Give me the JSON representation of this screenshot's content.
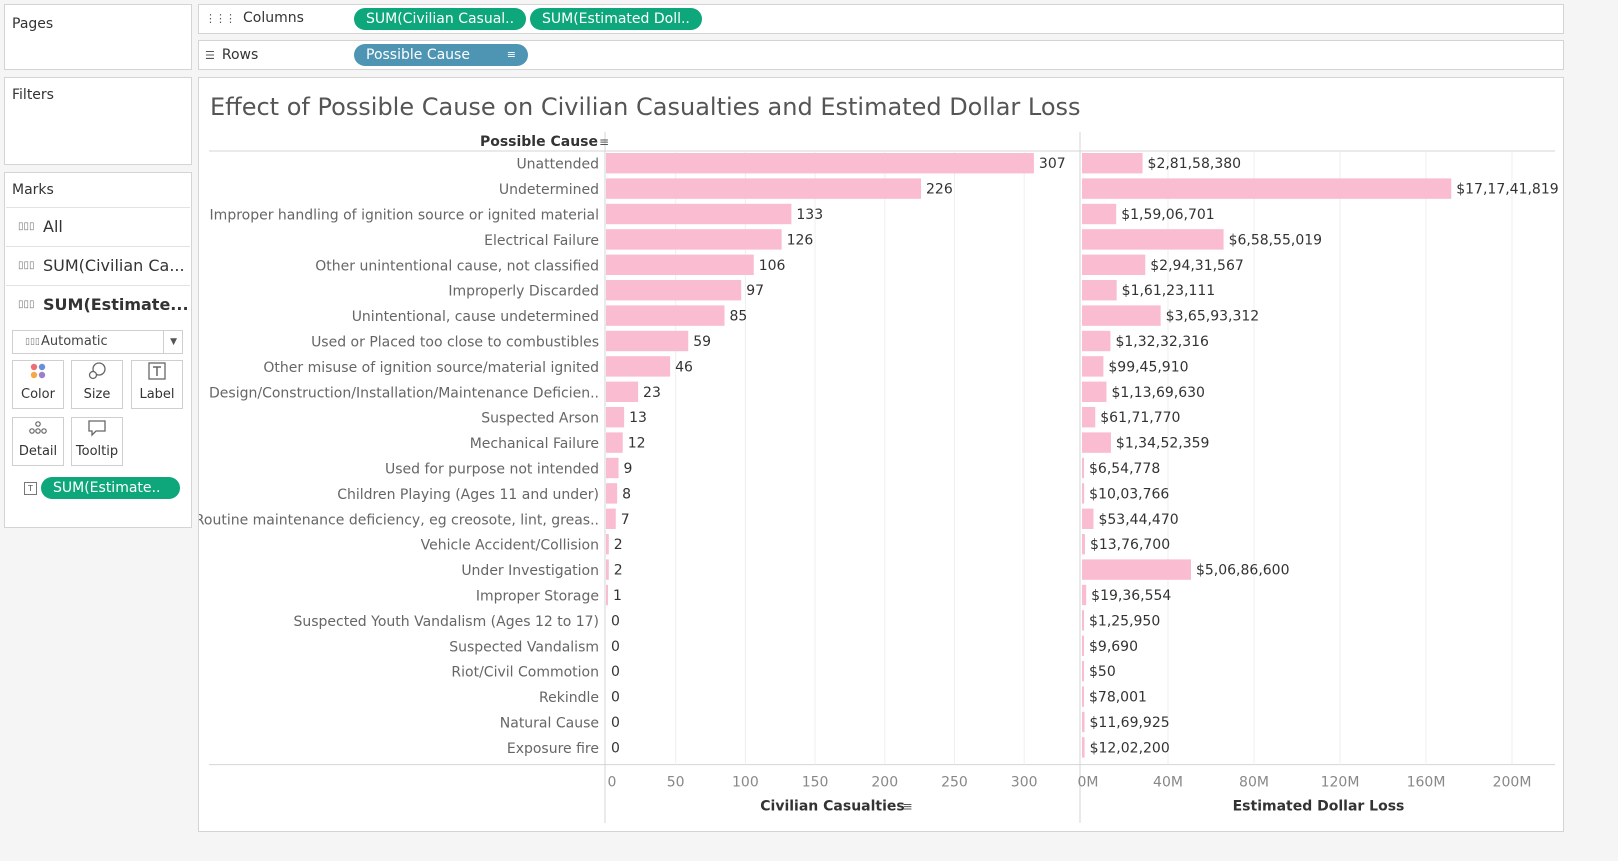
{
  "pages_card": {
    "title": "Pages"
  },
  "filters_card": {
    "title": "Filters"
  },
  "shelves": {
    "columns": {
      "label": "Columns",
      "icon": "columns-icon",
      "pills": [
        "SUM(Civilian Casual..",
        "SUM(Estimated Doll.."
      ]
    },
    "rows": {
      "label": "Rows",
      "icon": "rows-icon",
      "pills": [
        "Possible Cause"
      ]
    }
  },
  "marks": {
    "title": "Marks",
    "cards": [
      {
        "label": "All",
        "bold": false
      },
      {
        "label": "SUM(Civilian Ca...",
        "bold": false
      },
      {
        "label": "SUM(Estimate...",
        "bold": true
      }
    ],
    "mark_type": "Automatic",
    "buttons": [
      {
        "label": "Color",
        "icon": "color-icon"
      },
      {
        "label": "Size",
        "icon": "size-icon"
      },
      {
        "label": "Label",
        "icon": "label-icon"
      },
      {
        "label": "Detail",
        "icon": "detail-icon"
      },
      {
        "label": "Tooltip",
        "icon": "tooltip-icon"
      }
    ],
    "field_pill": "SUM(Estimate.."
  },
  "colors": {
    "bar": "#f9bcd0",
    "pill_green": "#0ea77b",
    "pill_blue": "#4e95b4"
  },
  "chart_data": {
    "type": "bar",
    "title": "Effect of Possible Cause on Civilian Casualties and Estimated Dollar Loss",
    "row_header": "Possible Cause",
    "categories": [
      "Unattended",
      "Undetermined",
      "Improper handling of ignition source or ignited material",
      "Electrical Failure",
      "Other unintentional cause, not classified",
      "Improperly Discarded",
      "Unintentional, cause undetermined",
      "Used or Placed too close to combustibles",
      "Other misuse of ignition source/material ignited",
      "Design/Construction/Installation/Maintenance Deficien..",
      "Suspected Arson",
      "Mechanical Failure",
      "Used for purpose not intended",
      "Children Playing (Ages 11 and under)",
      "Routine maintenance deficiency, eg creosote, lint, greas..",
      "Vehicle Accident/Collision",
      "Under Investigation",
      "Improper Storage",
      "Suspected Youth Vandalism (Ages 12 to 17)",
      "Suspected Vandalism",
      "Riot/Civil Commotion",
      "Rekindle",
      "Natural Cause",
      "Exposure fire"
    ],
    "series": [
      {
        "name": "Civilian Casualties",
        "xlabel": "Civilian Casualties",
        "values": [
          307,
          226,
          133,
          126,
          106,
          97,
          85,
          59,
          46,
          23,
          13,
          12,
          9,
          8,
          7,
          2,
          2,
          1,
          0,
          0,
          0,
          0,
          0,
          0
        ],
        "labels": [
          "307",
          "226",
          "133",
          "126",
          "106",
          "97",
          "85",
          "59",
          "46",
          "23",
          "13",
          "12",
          "9",
          "8",
          "7",
          "2",
          "2",
          "1",
          "0",
          "0",
          "0",
          "0",
          "0",
          "0"
        ],
        "ticks": [
          0,
          50,
          100,
          150,
          200,
          250,
          300
        ],
        "tick_labels": [
          "0",
          "50",
          "100",
          "150",
          "200",
          "250",
          "300"
        ],
        "xlim": [
          0,
          325
        ]
      },
      {
        "name": "Estimated Dollar Loss",
        "xlabel": "Estimated Dollar Loss",
        "values": [
          28158380,
          171741819,
          15906701,
          65855019,
          29431567,
          16123111,
          36593312,
          13232316,
          9945910,
          11369630,
          6171770,
          13452359,
          654778,
          1003766,
          5344470,
          1376700,
          50686600,
          1936554,
          125950,
          9690,
          50,
          78001,
          1169925,
          1202200
        ],
        "labels": [
          "$2,81,58,380",
          "$17,17,41,819",
          "$1,59,06,701",
          "$6,58,55,019",
          "$2,94,31,567",
          "$1,61,23,111",
          "$3,65,93,312",
          "$1,32,32,316",
          "$99,45,910",
          "$1,13,69,630",
          "$61,71,770",
          "$1,34,52,359",
          "$6,54,778",
          "$10,03,766",
          "$53,44,470",
          "$13,76,700",
          "$5,06,86,600",
          "$19,36,554",
          "$1,25,950",
          "$9,690",
          "$50",
          "$78,001",
          "$11,69,925",
          "$12,02,200"
        ],
        "ticks": [
          0,
          40000000,
          80000000,
          120000000,
          160000000,
          200000000
        ],
        "tick_labels": [
          "0M",
          "40M",
          "80M",
          "120M",
          "160M",
          "200M"
        ],
        "xlim": [
          0,
          220000000
        ]
      }
    ],
    "grid": true,
    "legend": "none"
  }
}
